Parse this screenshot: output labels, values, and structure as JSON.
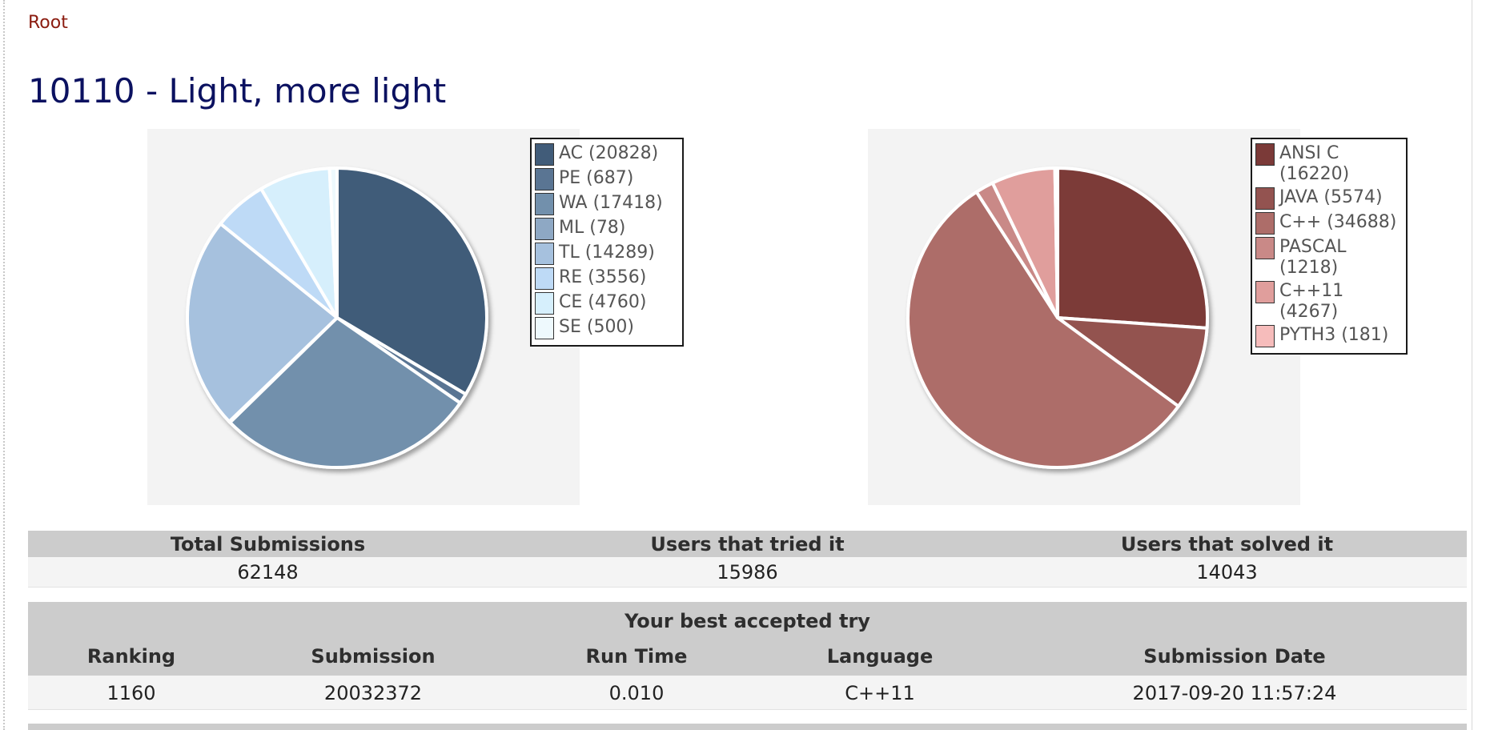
{
  "breadcrumb": {
    "root": "Root"
  },
  "problem": {
    "title": "10110 - Light, more light"
  },
  "chart_data": [
    {
      "type": "pie",
      "title": "",
      "categories": [
        "AC",
        "PE",
        "WA",
        "ML",
        "TL",
        "RE",
        "CE",
        "SE"
      ],
      "values": [
        20828,
        687,
        17418,
        78,
        14289,
        3556,
        4760,
        500
      ],
      "legend": [
        "AC (20828)",
        "PE (687)",
        "WA (17418)",
        "ML (78)",
        "TL (14289)",
        "RE (3556)",
        "CE (4760)",
        "SE (500)"
      ],
      "colors": [
        "#415c79",
        "#5a7593",
        "#7290ac",
        "#8ea8c4",
        "#a6c1de",
        "#bedaf6",
        "#d6effc",
        "#eef9fd"
      ],
      "legend_position": "right"
    },
    {
      "type": "pie",
      "title": "",
      "categories": [
        "ANSI C",
        "JAVA",
        "C++",
        "PASCAL",
        "C++11",
        "PYTH3"
      ],
      "values": [
        16220,
        5574,
        34688,
        1218,
        4267,
        181
      ],
      "legend": [
        "ANSI C (16220)",
        "JAVA (5574)",
        "C++ (34688)",
        "PASCAL (1218)",
        "C++11 (4267)",
        "PYTH3 (181)"
      ],
      "colors": [
        "#7b3a38",
        "#935350",
        "#ad6d69",
        "#c98987",
        "#e09e9c",
        "#f6bcbb"
      ],
      "legend_position": "right"
    }
  ],
  "stats": {
    "headers": [
      "Total Submissions",
      "Users that tried it",
      "Users that solved it"
    ],
    "values": [
      "62148",
      "15986",
      "14043"
    ]
  },
  "best_try": {
    "title": "Your best accepted try",
    "headers": [
      "Ranking",
      "Submission",
      "Run Time",
      "Language",
      "Submission Date"
    ],
    "values": [
      "1160",
      "20032372",
      "0.010",
      "C++11",
      "2017-09-20 11:57:24"
    ]
  }
}
